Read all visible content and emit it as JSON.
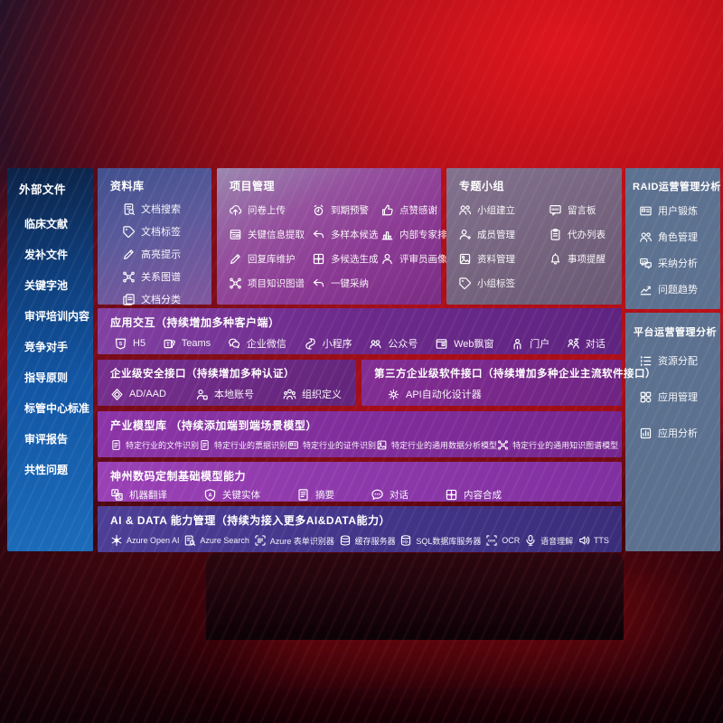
{
  "colors": {
    "background_red": "#a80e18",
    "sidebar_blue": "#1256a4",
    "panel_purple": "#7a2d84",
    "panel_slate": "#5d7190",
    "panel_indigo": "#413385",
    "text": "#ffffff"
  },
  "sidebar": {
    "title": "外部文件",
    "items": [
      "临床文献",
      "发补文件",
      "关键字池",
      "审评培训内容",
      "竞争对手",
      "指导原则",
      "标管中心标准",
      "审评报告",
      "共性问题"
    ]
  },
  "panels": {
    "library": {
      "title": "资料库",
      "items": [
        {
          "label": "文档搜索",
          "icon": "doc-search-icon"
        },
        {
          "label": "文档标签",
          "icon": "tag-icon"
        },
        {
          "label": "高亮提示",
          "icon": "pencil-icon"
        },
        {
          "label": "关系图谱",
          "icon": "graph-icon"
        },
        {
          "label": "文档分类",
          "icon": "doc-copy-icon"
        }
      ]
    },
    "project": {
      "title": "项目管理",
      "items": [
        {
          "label": "问卷上传",
          "icon": "cloud-upload-icon"
        },
        {
          "label": "到期预警",
          "icon": "alarm-icon"
        },
        {
          "label": "点赞感谢",
          "icon": "thumbs-up-icon"
        },
        {
          "label": "关键信息提取",
          "icon": "extract-icon"
        },
        {
          "label": "多样本候选",
          "icon": "reply-arrow-icon"
        },
        {
          "label": "内部专家排名",
          "icon": "ranking-icon"
        },
        {
          "label": "回复库维护",
          "icon": "pencil-icon"
        },
        {
          "label": "多候选生成",
          "icon": "puzzle-icon"
        },
        {
          "label": "评审员画像",
          "icon": "person-icon"
        },
        {
          "label": "项目知识图谱",
          "icon": "graph-icon"
        },
        {
          "label": "一键采纳",
          "icon": "reply-arrow-icon"
        }
      ]
    },
    "group": {
      "title": "专题小组",
      "items": [
        {
          "label": "小组建立",
          "icon": "people-icon"
        },
        {
          "label": "留言板",
          "icon": "bbs-icon"
        },
        {
          "label": "成员管理",
          "icon": "person-plus-icon"
        },
        {
          "label": "代办列表",
          "icon": "clipboard-icon"
        },
        {
          "label": "资料管理",
          "icon": "album-icon"
        },
        {
          "label": "事项提醒",
          "icon": "bell-icon"
        },
        {
          "label": "小组标签",
          "icon": "tag-icon"
        }
      ]
    },
    "raid": {
      "title": "RAID运营管理分析",
      "items": [
        {
          "label": "用户锻炼",
          "icon": "id-card-icon"
        },
        {
          "label": "角色管理",
          "icon": "people-icon"
        },
        {
          "label": "采纳分析",
          "icon": "qa-chat-icon"
        },
        {
          "label": "问题趋势",
          "icon": "trend-icon"
        }
      ]
    },
    "platform": {
      "title": "平台运营管理分析",
      "items": [
        {
          "label": "资源分配",
          "icon": "list-icon"
        },
        {
          "label": "应用管理",
          "icon": "apps-icon"
        },
        {
          "label": "应用分析",
          "icon": "report-icon"
        }
      ]
    },
    "interaction": {
      "title": "应用交互（持续增加多种客户端）",
      "items": [
        {
          "label": "H5",
          "icon": "h5-icon"
        },
        {
          "label": "Teams",
          "icon": "teams-icon"
        },
        {
          "label": "企业微信",
          "icon": "wechat-work-icon"
        },
        {
          "label": "小程序",
          "icon": "miniprogram-icon"
        },
        {
          "label": "公众号",
          "icon": "official-account-icon"
        },
        {
          "label": "Web飘窗",
          "icon": "window-icon"
        },
        {
          "label": "门户",
          "icon": "portal-icon"
        },
        {
          "label": "对话",
          "icon": "dialog-icon"
        }
      ]
    },
    "security": {
      "title": "企业级安全接口（持续增加多种认证）",
      "items": [
        {
          "label": "AD/AAD",
          "icon": "diamond-icon"
        },
        {
          "label": "本地账号",
          "icon": "person-badge-icon"
        },
        {
          "label": "组织定义",
          "icon": "org-icon"
        }
      ]
    },
    "thirdparty": {
      "title": "第三方企业级软件接口（持续增加多种企业主流软件接口）",
      "items": [
        {
          "label": "API自动化设计器",
          "icon": "api-gear-icon"
        }
      ]
    },
    "models": {
      "title": "产业模型库 （持续添加端到端场景模型）",
      "items": [
        {
          "label": "特定行业的文件识别",
          "icon": "doc-icon"
        },
        {
          "label": "特定行业的票据识别",
          "icon": "receipt-icon"
        },
        {
          "label": "特定行业的证件识别",
          "icon": "id-card-icon"
        },
        {
          "label": "特定行业的通用数据分析模型",
          "icon": "album-icon"
        },
        {
          "label": "特定行业的通用知识图谱模型",
          "icon": "graph-icon"
        }
      ]
    },
    "base_models": {
      "title": "神州数码定制基础模型能力",
      "items": [
        {
          "label": "机器翻译",
          "icon": "translate-icon"
        },
        {
          "label": "关键实体",
          "icon": "shield-a-icon"
        },
        {
          "label": "摘要",
          "icon": "summary-icon"
        },
        {
          "label": "对话",
          "icon": "chat-icon"
        },
        {
          "label": "内容合成",
          "icon": "puzzle-icon"
        }
      ]
    },
    "ai_data": {
      "title": "AI & DATA 能力管理（持续为接入更多AI&DATA能力）",
      "items": [
        {
          "label": "Azure Open AI",
          "icon": "openai-icon"
        },
        {
          "label": "Azure Search",
          "icon": "azure-search-icon"
        },
        {
          "label": "Azure 表单识别器",
          "icon": "form-icon"
        },
        {
          "label": "缓存服务器",
          "icon": "cache-icon"
        },
        {
          "label": "SQL数据库服务器",
          "icon": "sql-icon"
        },
        {
          "label": "OCR",
          "icon": "ocr-icon"
        },
        {
          "label": "语音理解",
          "icon": "speech-icon"
        },
        {
          "label": "TTS",
          "icon": "tts-icon"
        }
      ]
    }
  }
}
